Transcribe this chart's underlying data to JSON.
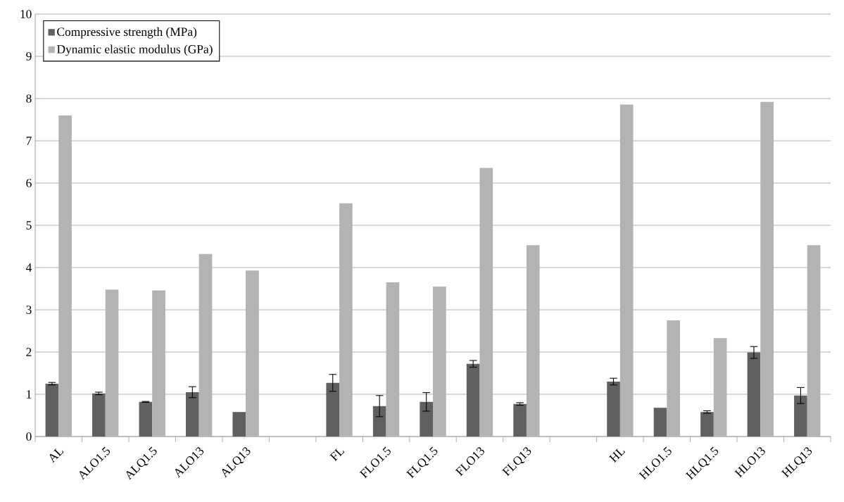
{
  "chart_data": {
    "type": "bar",
    "categories": [
      "AL",
      "ALO1.5",
      "ALQ1.5",
      "ALO13",
      "ALQ13",
      null,
      "FL",
      "FLO1.5",
      "FLQ1.5",
      "FLO13",
      "FLQ13",
      null,
      "HL",
      "HLO1.5",
      "HLQ1.5",
      "HLO13",
      "HLQ13"
    ],
    "series": [
      {
        "name": "Compressive strength (MPa)",
        "color": "#606060",
        "values": [
          1.25,
          1.02,
          0.82,
          1.05,
          0.58,
          null,
          1.27,
          0.72,
          0.82,
          1.72,
          0.77,
          null,
          1.3,
          0.68,
          0.58,
          1.99,
          0.97
        ],
        "errors": [
          0.03,
          0.03,
          0.01,
          0.13,
          null,
          null,
          0.2,
          0.25,
          0.22,
          0.08,
          0.03,
          null,
          0.08,
          null,
          0.03,
          0.14,
          0.19
        ]
      },
      {
        "name": "Dynamic elastic modulus (GPa)",
        "color": "#b3b3b3",
        "values": [
          7.6,
          3.48,
          3.46,
          4.32,
          3.93,
          null,
          5.52,
          3.65,
          3.55,
          6.36,
          4.53,
          null,
          7.86,
          2.75,
          2.33,
          7.92,
          4.53
        ]
      }
    ],
    "ylim": [
      0,
      10
    ],
    "yticks": [
      0,
      1,
      2,
      3,
      4,
      5,
      6,
      7,
      8,
      9,
      10
    ],
    "grid": "y",
    "legend": "top left"
  }
}
